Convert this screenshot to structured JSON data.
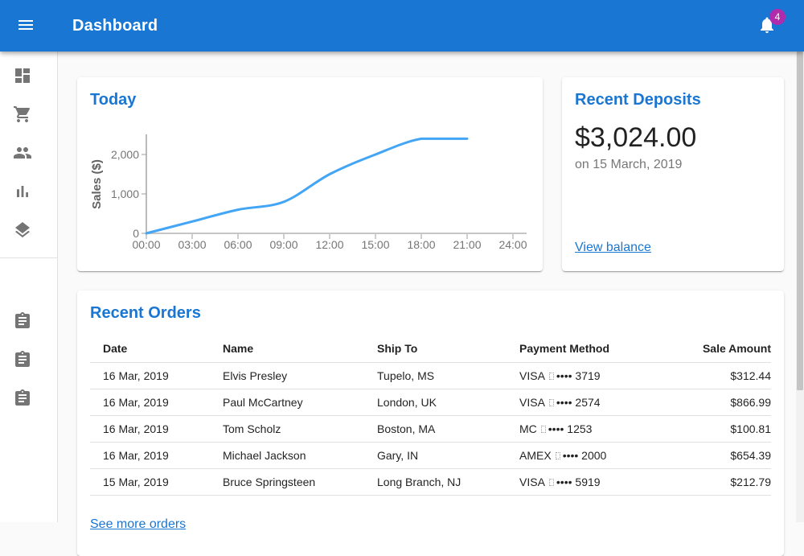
{
  "app_bar": {
    "title": "Dashboard",
    "notification_count": "4"
  },
  "sidebar": {
    "main_items": [
      {
        "icon": "dashboard-icon"
      },
      {
        "icon": "shopping-cart-icon"
      },
      {
        "icon": "people-icon"
      },
      {
        "icon": "bar-chart-icon"
      },
      {
        "icon": "layers-icon"
      }
    ],
    "secondary_items": [
      {
        "icon": "assignment-icon"
      },
      {
        "icon": "assignment-icon"
      },
      {
        "icon": "assignment-icon"
      }
    ]
  },
  "chart_data": {
    "type": "line",
    "title": "Today",
    "xlabel": "",
    "ylabel": "Sales ($)",
    "x_ticks": [
      "00:00",
      "03:00",
      "06:00",
      "09:00",
      "12:00",
      "15:00",
      "18:00",
      "21:00",
      "24:00"
    ],
    "y_ticks": [
      "0",
      "1,000",
      "2,000"
    ],
    "ylim": [
      0,
      2500
    ],
    "grid": false,
    "legend": false,
    "series": [
      {
        "name": "Sales ($)",
        "values": [
          0,
          300,
          600,
          800,
          1500,
          2000,
          2400,
          2400,
          null
        ]
      }
    ]
  },
  "deposits_card": {
    "title": "Recent Deposits",
    "amount": "$3,024.00",
    "subtitle": "on 15 March, 2019",
    "link_label": "View balance"
  },
  "orders_card": {
    "title": "Recent Orders",
    "link_label": "See more orders",
    "columns": [
      "Date",
      "Name",
      "Ship To",
      "Payment Method",
      "Sale Amount"
    ],
    "rows": [
      {
        "date": "16 Mar, 2019",
        "name": "Elvis Presley",
        "ship_to": "Tupelo, MS",
        "payment_brand": "VISA",
        "payment_masked": "•••• 3719",
        "amount": "$312.44"
      },
      {
        "date": "16 Mar, 2019",
        "name": "Paul McCartney",
        "ship_to": "London, UK",
        "payment_brand": "VISA",
        "payment_masked": "•••• 2574",
        "amount": "$866.99"
      },
      {
        "date": "16 Mar, 2019",
        "name": "Tom Scholz",
        "ship_to": "Boston, MA",
        "payment_brand": "MC",
        "payment_masked": "•••• 1253",
        "amount": "$100.81"
      },
      {
        "date": "16 Mar, 2019",
        "name": "Michael Jackson",
        "ship_to": "Gary, IN",
        "payment_brand": "AMEX",
        "payment_masked": "•••• 2000",
        "amount": "$654.39"
      },
      {
        "date": "15 Mar, 2019",
        "name": "Bruce Springsteen",
        "ship_to": "Long Branch, NJ",
        "payment_brand": "VISA",
        "payment_masked": "•••• 5919",
        "amount": "$212.79"
      }
    ]
  },
  "colors": {
    "app_bar": "#1976d2",
    "heading": "#1976d2",
    "link": "#1976d2",
    "badge": "#b02cac",
    "chart_line": "#42a5f5",
    "icon_gray": "#757575",
    "axis_text": "#757575"
  }
}
